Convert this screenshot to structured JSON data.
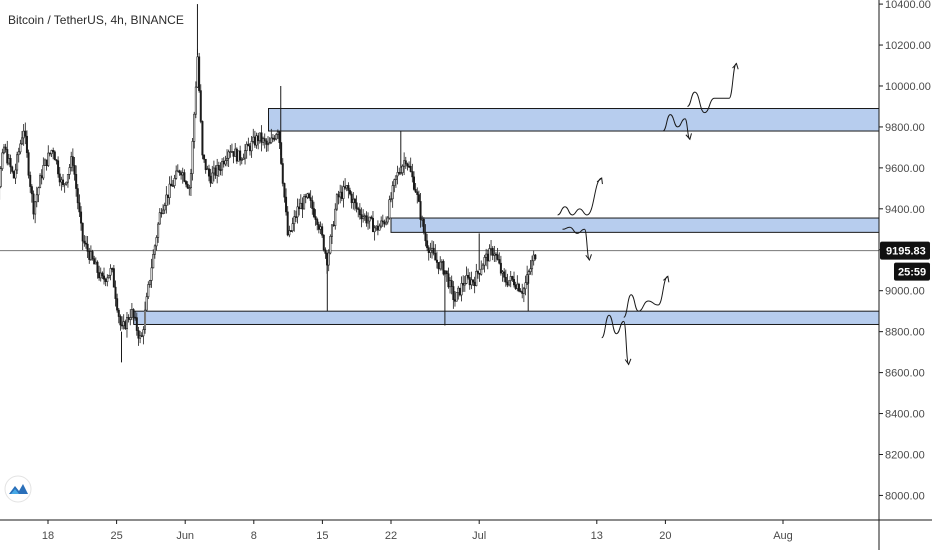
{
  "header": {
    "symbol_title": "Bitcoin / TetherUS, 4h, BINANCE"
  },
  "price_badge": {
    "price": "9195.83",
    "countdown": "25:59"
  },
  "logo": {
    "icon": "tradingview-logo-icon"
  },
  "colors": {
    "candle": "#1a1a1a",
    "zone_fill": "#b7cdee",
    "zone_stroke": "#1a1a1a",
    "badge_bg": "#111111",
    "axis_text": "#4a4a4a",
    "grid_line": "#e6e6e6"
  },
  "chart_data": {
    "type": "candlestick",
    "title": "Bitcoin / TetherUS, 4h, BINANCE",
    "y_ticks": [
      "10400.00",
      "10200.00",
      "10000.00",
      "9800.00",
      "9600.00",
      "9400.00",
      "9200.00",
      "9000.00",
      "8800.00",
      "8600.00",
      "8400.00",
      "8200.00",
      "8000.00"
    ],
    "y_tick_values": [
      10400,
      10200,
      10000,
      9800,
      9600,
      9400,
      9200,
      9000,
      8800,
      8600,
      8400,
      8200,
      8000
    ],
    "ylim": [
      7880,
      10420
    ],
    "x_ticks": [
      "18",
      "25",
      "Jun",
      "8",
      "15",
      "22",
      "Jul",
      "13",
      "20",
      "Aug"
    ],
    "x_tick_dates": [
      "2020-05-18",
      "2020-05-25",
      "2020-06-01",
      "2020-06-08",
      "2020-06-15",
      "2020-06-22",
      "2020-07-01",
      "2020-07-13",
      "2020-07-20",
      "2020-08-01"
    ],
    "current_price": 9195.83,
    "price_path": [
      [
        "2020-05-11T12",
        9050
      ],
      [
        "2020-05-12T12",
        9350
      ],
      [
        "2020-05-13T12",
        9700
      ],
      [
        "2020-05-14T12",
        9550
      ],
      [
        "2020-05-15T12",
        9800
      ],
      [
        "2020-05-16T12",
        9400
      ],
      [
        "2020-05-17T12",
        9600
      ],
      [
        "2020-05-18T12",
        9700
      ],
      [
        "2020-05-19T12",
        9500
      ],
      [
        "2020-05-20T12",
        9650
      ],
      [
        "2020-05-21T12",
        9250
      ],
      [
        "2020-05-22T12",
        9150
      ],
      [
        "2020-05-23T12",
        9050
      ],
      [
        "2020-05-24T12",
        9100
      ],
      [
        "2020-05-25T12",
        8800
      ],
      [
        "2020-05-26T12",
        8900
      ],
      [
        "2020-05-27T12",
        8750
      ],
      [
        "2020-05-28T12",
        9100
      ],
      [
        "2020-05-29T12",
        9400
      ],
      [
        "2020-05-30T12",
        9500
      ],
      [
        "2020-05-31T12",
        9600
      ],
      [
        "2020-06-01T12",
        9500
      ],
      [
        "2020-06-02T06",
        10150
      ],
      [
        "2020-06-02T18",
        9650
      ],
      [
        "2020-06-03T12",
        9550
      ],
      [
        "2020-06-04T12",
        9600
      ],
      [
        "2020-06-05T12",
        9700
      ],
      [
        "2020-06-06T12",
        9650
      ],
      [
        "2020-06-07T12",
        9700
      ],
      [
        "2020-06-08T12",
        9750
      ],
      [
        "2020-06-09T12",
        9700
      ],
      [
        "2020-06-10T12",
        9800
      ],
      [
        "2020-06-11T12",
        9250
      ],
      [
        "2020-06-12T12",
        9400
      ],
      [
        "2020-06-13T12",
        9450
      ],
      [
        "2020-06-14T12",
        9350
      ],
      [
        "2020-06-15T12",
        9150
      ],
      [
        "2020-06-16T12",
        9450
      ],
      [
        "2020-06-17T12",
        9500
      ],
      [
        "2020-06-18T12",
        9400
      ],
      [
        "2020-06-19T12",
        9350
      ],
      [
        "2020-06-20T12",
        9300
      ],
      [
        "2020-06-21T12",
        9350
      ],
      [
        "2020-06-22T12",
        9550
      ],
      [
        "2020-06-23T12",
        9650
      ],
      [
        "2020-06-24T12",
        9500
      ],
      [
        "2020-06-25T12",
        9250
      ],
      [
        "2020-06-26T12",
        9150
      ],
      [
        "2020-06-27T12",
        9100
      ],
      [
        "2020-06-28T12",
        8950
      ],
      [
        "2020-06-29T12",
        9050
      ],
      [
        "2020-06-30T12",
        9050
      ],
      [
        "2020-07-01T12",
        9150
      ],
      [
        "2020-07-02T12",
        9200
      ],
      [
        "2020-07-03T12",
        9050
      ],
      [
        "2020-07-04T12",
        9050
      ],
      [
        "2020-07-05T12",
        9000
      ],
      [
        "2020-07-06T12",
        9150
      ],
      [
        "2020-07-06T20",
        9195.83
      ]
    ],
    "wick_highs": [
      [
        "2020-06-02T06",
        10400
      ],
      [
        "2020-06-10T18",
        10000
      ],
      [
        "2020-06-23T00",
        9780
      ],
      [
        "2020-07-01T00",
        9280
      ]
    ],
    "wick_lows": [
      [
        "2020-05-25T12",
        8650
      ],
      [
        "2020-06-15T12",
        8900
      ],
      [
        "2020-06-27T12",
        8830
      ],
      [
        "2020-07-06T00",
        8900
      ]
    ],
    "zones": [
      {
        "from_date": "2020-06-09T12",
        "y_low": 9780,
        "y_high": 9890
      },
      {
        "from_date": "2020-06-22T00",
        "y_low": 9285,
        "y_high": 9355
      },
      {
        "from_date": "2020-05-26T18",
        "y_low": 8835,
        "y_high": 8900
      }
    ],
    "projection_scenarios": [
      {
        "points": [
          [
            "2020-07-19T18",
            9780
          ],
          [
            "2020-07-20T12",
            9860
          ],
          [
            "2020-07-21T06",
            9800
          ],
          [
            "2020-07-22T00",
            9840
          ],
          [
            "2020-07-22T12",
            9740
          ]
        ],
        "arrow": true
      },
      {
        "points": [
          [
            "2020-07-22T06",
            9900
          ],
          [
            "2020-07-23T00",
            9970
          ],
          [
            "2020-07-24T00",
            9870
          ],
          [
            "2020-07-25T00",
            9940
          ],
          [
            "2020-07-26T12",
            9940
          ],
          [
            "2020-07-27T06",
            10110
          ]
        ],
        "arrow": true
      },
      {
        "points": [
          [
            "2020-07-09T00",
            9370
          ],
          [
            "2020-07-09T18",
            9410
          ],
          [
            "2020-07-10T12",
            9370
          ],
          [
            "2020-07-11T06",
            9400
          ],
          [
            "2020-07-12T00",
            9370
          ],
          [
            "2020-07-13T12",
            9550
          ]
        ],
        "arrow": true
      },
      {
        "points": [
          [
            "2020-07-09T12",
            9300
          ],
          [
            "2020-07-10T06",
            9310
          ],
          [
            "2020-07-11T00",
            9280
          ],
          [
            "2020-07-11T18",
            9300
          ],
          [
            "2020-07-12T06",
            9150
          ]
        ],
        "arrow": true
      },
      {
        "points": [
          [
            "2020-07-13T12",
            8770
          ],
          [
            "2020-07-14T06",
            8880
          ],
          [
            "2020-07-15T00",
            8790
          ],
          [
            "2020-07-15T18",
            8850
          ],
          [
            "2020-07-16T06",
            8640
          ]
        ],
        "arrow": true
      },
      {
        "points": [
          [
            "2020-07-15T18",
            8870
          ],
          [
            "2020-07-16T12",
            8980
          ],
          [
            "2020-07-17T06",
            8900
          ],
          [
            "2020-07-18T06",
            8950
          ],
          [
            "2020-07-19T06",
            8930
          ],
          [
            "2020-07-20T06",
            9070
          ]
        ],
        "arrow": true
      }
    ]
  }
}
